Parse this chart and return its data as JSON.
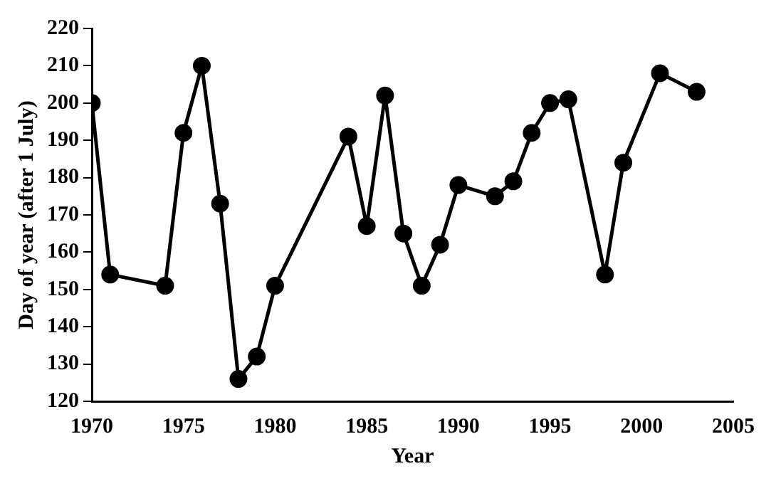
{
  "chart_data": {
    "type": "line",
    "xlabel": "Year",
    "ylabel": "Day of year (after 1 July)",
    "x": [
      1970,
      1971,
      1974,
      1975,
      1976,
      1977,
      1978,
      1979,
      1980,
      1984,
      1985,
      1986,
      1987,
      1988,
      1989,
      1990,
      1992,
      1993,
      1994,
      1995,
      1996,
      1998,
      1999,
      2001,
      2003
    ],
    "series": [
      {
        "color": "#000000",
        "values": [
          200,
          154,
          151,
          192,
          210,
          173,
          126,
          132,
          151,
          191,
          167,
          202,
          165,
          151,
          162,
          178,
          175,
          179,
          192,
          200,
          201,
          154,
          184,
          208,
          203
        ]
      }
    ],
    "xlim": [
      1970,
      2005
    ],
    "xticks": [
      1970,
      1975,
      1980,
      1985,
      1990,
      1995,
      2000,
      2005
    ],
    "ylim": [
      120,
      220
    ],
    "yticks": [
      120,
      130,
      140,
      150,
      160,
      170,
      180,
      190,
      200,
      210,
      220
    ],
    "grid": false,
    "legend": false,
    "marker": "circle",
    "line_style": "solid"
  }
}
